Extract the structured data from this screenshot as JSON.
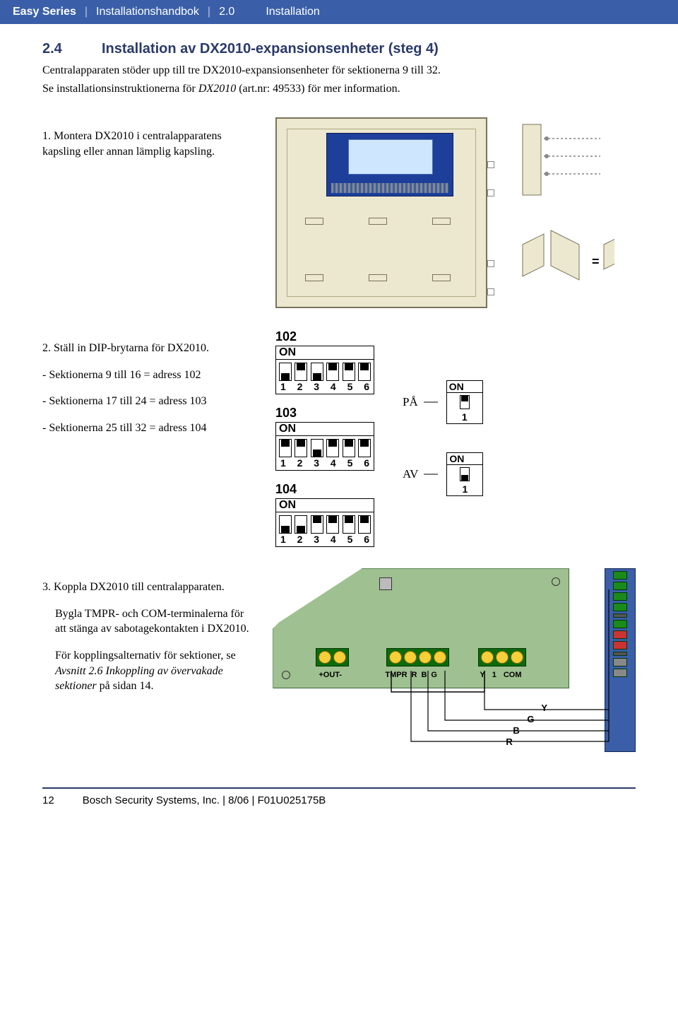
{
  "header": {
    "product": "Easy Series",
    "title": "Installationshandbok",
    "chapter": "2.0",
    "section_name": "Installation"
  },
  "section": {
    "number": "2.4",
    "title": "Installation av DX2010-expansionsenheter (steg 4)",
    "intro_line1": "Centralapparaten stöder upp till tre DX2010-expansionsenheter för sektionerna 9 till 32.",
    "intro_line2_a": "Se installationsinstruktionerna för ",
    "intro_line2_i": "DX2010",
    "intro_line2_b": " (art.nr: 49533) för mer information."
  },
  "step1": {
    "num": "1.",
    "text": "Montera DX2010 i centralapparatens kapsling eller annan lämplig kapsling."
  },
  "step2": {
    "num": "2.",
    "title": "Ställ in DIP-brytarna för DX2010.",
    "item1": "-  Sektionerna 9 till 16 = adress 102",
    "item2": "-  Sektionerna 17 till 24 = adress 103",
    "item3": "-  Sektionerna 25 till 32 = adress 104"
  },
  "dip": {
    "addr102": "102",
    "addr103": "103",
    "addr104": "104",
    "on": "ON",
    "nums": [
      "1",
      "2",
      "3",
      "4",
      "5",
      "6"
    ],
    "d102": [
      "down",
      "up",
      "down",
      "up",
      "up",
      "up"
    ],
    "d103": [
      "up",
      "up",
      "down",
      "up",
      "up",
      "up"
    ],
    "d104": [
      "down",
      "down",
      "up",
      "up",
      "up",
      "up"
    ],
    "pa": "PÅ",
    "av": "AV",
    "single1": "1"
  },
  "step3": {
    "num": "3.",
    "line1": "Koppla DX2010 till centralapparaten.",
    "line2": "Bygla TMPR- och COM-terminalerna för att stänga av sabotagekontakten i DX2010.",
    "line3a": "För kopplingsalternativ för sektioner, se ",
    "line3i": "Avsnitt 2.6 Inkoppling av övervakade sektioner",
    "line3b": " på sidan 14."
  },
  "wiring_labels": {
    "out": "+OUT-",
    "tmpr": "TMPR",
    "r": "R",
    "b": "B",
    "g": "G",
    "y": "Y",
    "one": "1",
    "com": "COM",
    "wr": "R",
    "wb": "B",
    "wg": "G",
    "wy": "Y"
  },
  "footer": {
    "page": "12",
    "text": "Bosch Security Systems, Inc. | 8/06 | F01U025175B"
  },
  "colors": {
    "header_bg": "#3a5fa8",
    "heading": "#2a3a6a",
    "enclosure_bg": "#ece7cf",
    "pcb_bg": "#9fc090",
    "terminal_green": "#0b6b0b",
    "screw_yellow": "#f6cf3a"
  }
}
